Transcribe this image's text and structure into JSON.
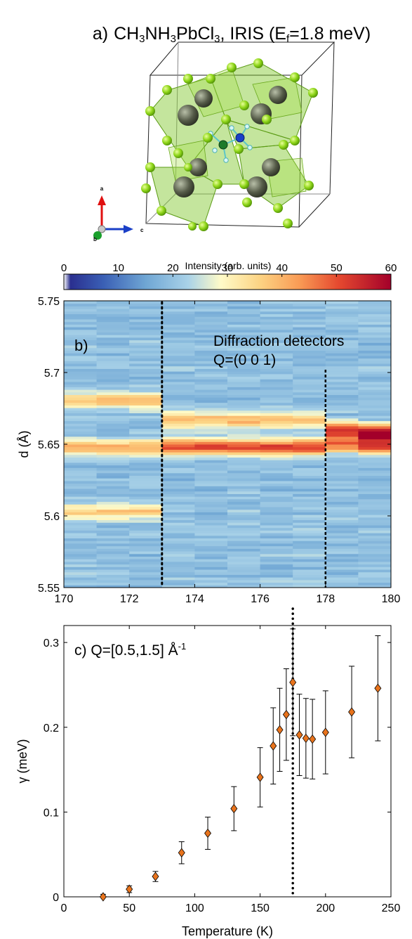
{
  "panel_a": {
    "label": "a)",
    "title_parts": [
      "CH",
      "3",
      "NH",
      "3",
      "PbCl",
      "3",
      ", IRIS (E",
      "f",
      "=1.8 meV)"
    ],
    "axes": {
      "a": "a",
      "b": "b",
      "c": "c"
    }
  },
  "colorbar": {
    "label": "Intensity (arb. units)",
    "ticks": [
      0,
      10,
      20,
      30,
      40,
      50,
      60
    ],
    "tick_labels": [
      "0",
      "10",
      "20",
      "30",
      "40",
      "50",
      "60"
    ]
  },
  "panel_b": {
    "label": "b)",
    "annotation_line1": "Diffraction detectors",
    "annotation_line2": "Q=(0 0 1)",
    "ylabel": "d (Å)",
    "xlim": [
      170,
      180
    ],
    "ylim": [
      5.55,
      5.75
    ],
    "xticks": [
      "170",
      "172",
      "174",
      "176",
      "178",
      "180"
    ],
    "yticks": [
      "5.55",
      "5.6",
      "5.65",
      "5.7",
      "5.75"
    ],
    "transitions": [
      173,
      178
    ]
  },
  "chart_data": [
    {
      "type": "heatmap",
      "xlim": [
        170,
        180
      ],
      "ylim": [
        5.55,
        5.75
      ],
      "zlim": [
        0,
        60
      ],
      "columns": [
        {
          "x_range": [
            170,
            173
          ],
          "peaks": [
            {
              "d": 5.681,
              "intensity": 34
            },
            {
              "d": 5.648,
              "intensity": 36
            },
            {
              "d": 5.603,
              "intensity": 31
            }
          ]
        },
        {
          "x_range": [
            173,
            178
          ],
          "peaks": [
            {
              "d": 5.667,
              "intensity": 34
            },
            {
              "d": 5.648,
              "intensity": 48
            }
          ]
        },
        {
          "x_range": [
            178,
            179
          ],
          "peaks": [
            {
              "d": 5.66,
              "intensity": 48
            },
            {
              "d": 5.65,
              "intensity": 43
            }
          ]
        },
        {
          "x_range": [
            179,
            180
          ],
          "peaks": [
            {
              "d": 5.658,
              "intensity": 56
            },
            {
              "d": 5.649,
              "intensity": 45
            }
          ]
        }
      ]
    },
    {
      "type": "scatter",
      "annotation": "c) Q=[0.5,1.5] Å",
      "annotation_sup": "-1",
      "xlabel": "Temperature (K)",
      "ylabel": "γ (meV)",
      "xlim": [
        0,
        250
      ],
      "ylim": [
        0,
        0.32
      ],
      "xticks": [
        0,
        50,
        100,
        150,
        200,
        250
      ],
      "yticks": [
        0,
        0.1,
        0.2,
        0.3
      ],
      "ytick_labels": [
        "0",
        "0.1",
        "0.2",
        "0.3"
      ],
      "transition_x": 175,
      "marker_color": "#e8731c",
      "points": [
        {
          "x": 30,
          "y": 0.0,
          "err": 0.003
        },
        {
          "x": 50,
          "y": 0.009,
          "err": 0.004
        },
        {
          "x": 70,
          "y": 0.024,
          "err": 0.006
        },
        {
          "x": 90,
          "y": 0.052,
          "err": 0.013
        },
        {
          "x": 110,
          "y": 0.075,
          "err": 0.019
        },
        {
          "x": 130,
          "y": 0.104,
          "err": 0.026
        },
        {
          "x": 150,
          "y": 0.141,
          "err": 0.035
        },
        {
          "x": 160,
          "y": 0.178,
          "err": 0.045
        },
        {
          "x": 165,
          "y": 0.197,
          "err": 0.049
        },
        {
          "x": 170,
          "y": 0.215,
          "err": 0.054
        },
        {
          "x": 175,
          "y": 0.253,
          "err": 0.063
        },
        {
          "x": 180,
          "y": 0.191,
          "err": 0.048
        },
        {
          "x": 185,
          "y": 0.187,
          "err": 0.047
        },
        {
          "x": 190,
          "y": 0.186,
          "err": 0.047
        },
        {
          "x": 200,
          "y": 0.194,
          "err": 0.049
        },
        {
          "x": 220,
          "y": 0.218,
          "err": 0.054
        },
        {
          "x": 240,
          "y": 0.246,
          "err": 0.062
        }
      ]
    }
  ]
}
